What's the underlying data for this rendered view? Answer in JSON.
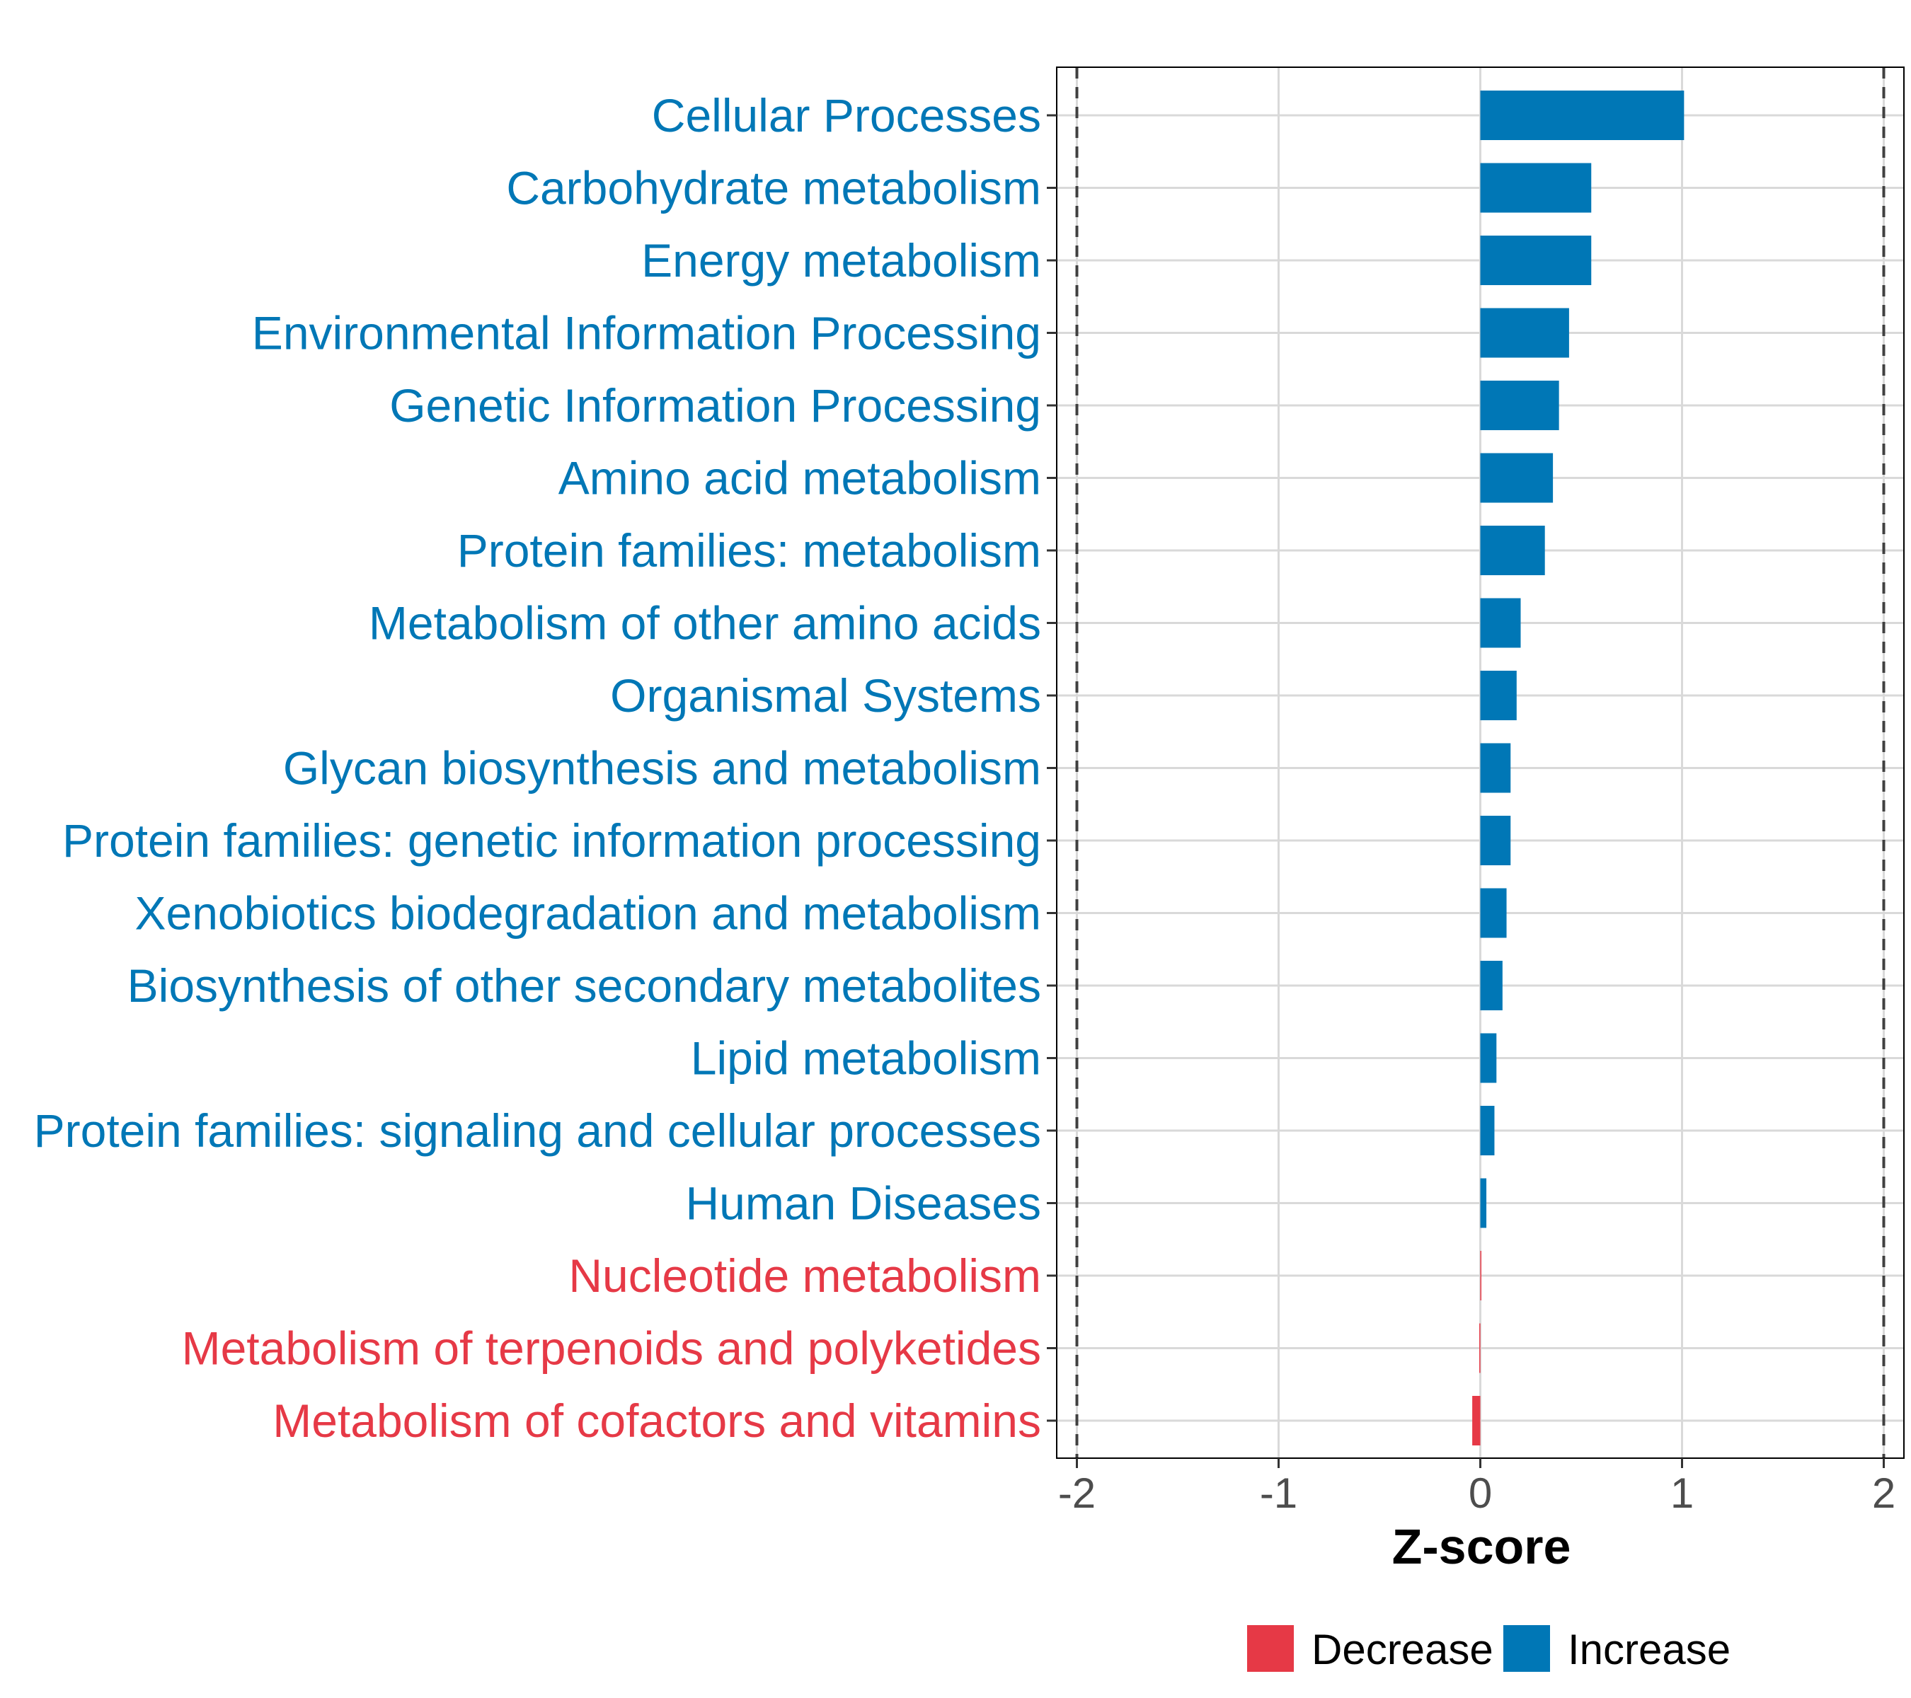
{
  "colors": {
    "increase": "#0077B6",
    "decrease": "#E63946",
    "grid": "#D9D9D9",
    "axis_text": "#4D4D4D",
    "refline": "#404040"
  },
  "chart_data": {
    "type": "bar",
    "orientation": "horizontal",
    "title": "",
    "xlabel": "Z-score",
    "ylabel": "",
    "xlim": [
      -2.1,
      2.1
    ],
    "xticks": [
      -2,
      -1,
      0,
      1,
      2
    ],
    "xtick_labels": [
      "-2",
      "-1",
      "0",
      "1",
      "2"
    ],
    "reference_lines": [
      -2,
      2
    ],
    "grid": true,
    "legend_position": "bottom",
    "categories": [
      "Cellular Processes",
      "Carbohydrate metabolism",
      "Energy metabolism",
      "Environmental Information Processing",
      "Genetic Information Processing",
      "Amino acid metabolism",
      "Protein families: metabolism",
      "Metabolism of other amino acids",
      "Organismal Systems",
      "Glycan biosynthesis and metabolism",
      "Protein families: genetic information processing",
      "Xenobiotics biodegradation and metabolism",
      "Biosynthesis of other secondary metabolites",
      "Lipid metabolism",
      "Protein families: signaling and cellular processes",
      "Human Diseases",
      "Nucleotide metabolism",
      "Metabolism of terpenoids and polyketides",
      "Metabolism of cofactors and vitamins"
    ],
    "values": [
      1.01,
      0.55,
      0.55,
      0.44,
      0.39,
      0.36,
      0.32,
      0.2,
      0.18,
      0.15,
      0.15,
      0.13,
      0.11,
      0.08,
      0.07,
      0.03,
      0.0,
      -0.005,
      -0.04
    ],
    "groups": [
      "Increase",
      "Increase",
      "Increase",
      "Increase",
      "Increase",
      "Increase",
      "Increase",
      "Increase",
      "Increase",
      "Increase",
      "Increase",
      "Increase",
      "Increase",
      "Increase",
      "Increase",
      "Increase",
      "Decrease",
      "Decrease",
      "Decrease"
    ],
    "legend": [
      {
        "name": "Decrease",
        "color": "#E63946"
      },
      {
        "name": "Increase",
        "color": "#0077B6"
      }
    ]
  }
}
